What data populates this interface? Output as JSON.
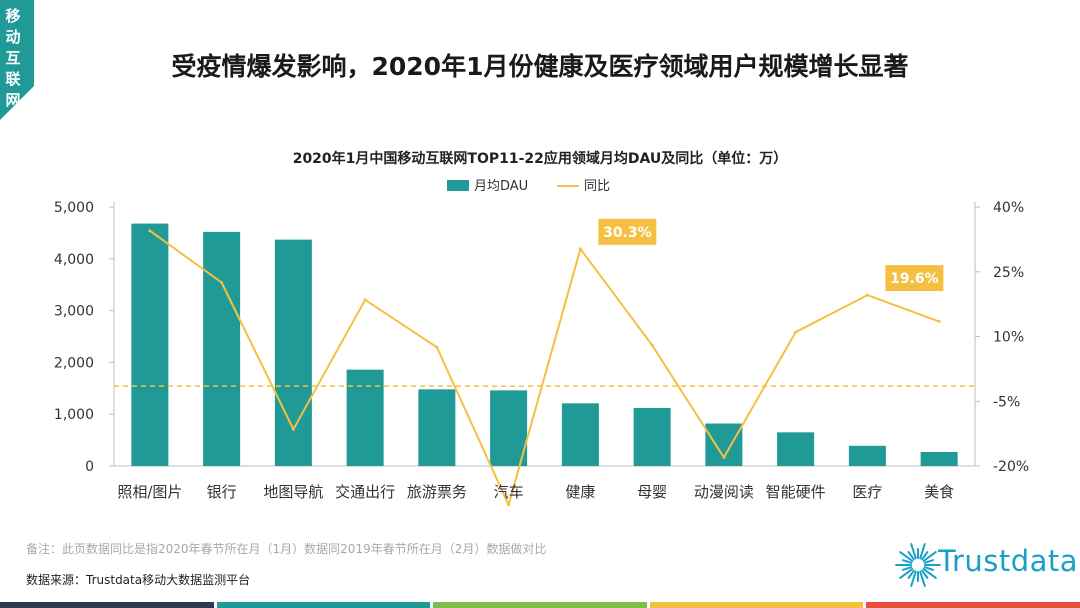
{
  "side_tag": "移动互联网",
  "page_title": "受疫情爆发影响，2020年1月份健康及医疗领域用户规模增长显著",
  "footnote": "备注：此页数据同比是指2020年春节所在月（1月）数据同2019年春节所在月（2月）数据做对比",
  "source": "数据来源：Trustdata移动大数据监测平台",
  "brand": "Trustdata",
  "colors": {
    "accent": "#1f9a96",
    "bar": "#1f9a96",
    "line": "#f5c042",
    "label_bg": "#f5c042",
    "bottom_bar": [
      "#2b3a4a",
      "#1f9a96",
      "#7cbf4a",
      "#f5c042",
      "#e94e3c"
    ]
  },
  "chart_data": {
    "type": "bar+line",
    "title": "2020年1月中国移动互联网TOP11-22应用领域月均DAU及同比（单位：万）",
    "categories": [
      "照相/图片",
      "银行",
      "地图导航",
      "交通出行",
      "旅游票务",
      "汽车",
      "健康",
      "母婴",
      "动漫阅读",
      "智能硬件",
      "医疗",
      "美食"
    ],
    "series": [
      {
        "name": "月均DAU",
        "type": "bar",
        "axis": "left",
        "values": [
          4680,
          4520,
          4370,
          1860,
          1480,
          1460,
          1210,
          1120,
          820,
          650,
          390,
          270
        ]
      },
      {
        "name": "同比",
        "type": "line",
        "axis": "right",
        "values": [
          34.5,
          22.5,
          -11.5,
          18.5,
          7.5,
          -29.0,
          30.3,
          8.0,
          -18.0,
          11.0,
          19.6,
          13.5
        ]
      }
    ],
    "y_left": {
      "min": 0,
      "max": 5000,
      "ticks": [
        "0",
        "1,000",
        "2,000",
        "3,000",
        "4,000",
        "5,000"
      ]
    },
    "y_right": {
      "min": -20,
      "max": 40,
      "ticks": [
        "-20%",
        "-5%",
        "10%",
        "25%",
        "40%"
      ]
    },
    "reference_line_right": -1.5,
    "data_labels": [
      {
        "index": 6,
        "text": "30.3%"
      },
      {
        "index": 10,
        "text": "19.6%"
      }
    ],
    "legend": {
      "position": "top-center"
    },
    "grid": false
  }
}
